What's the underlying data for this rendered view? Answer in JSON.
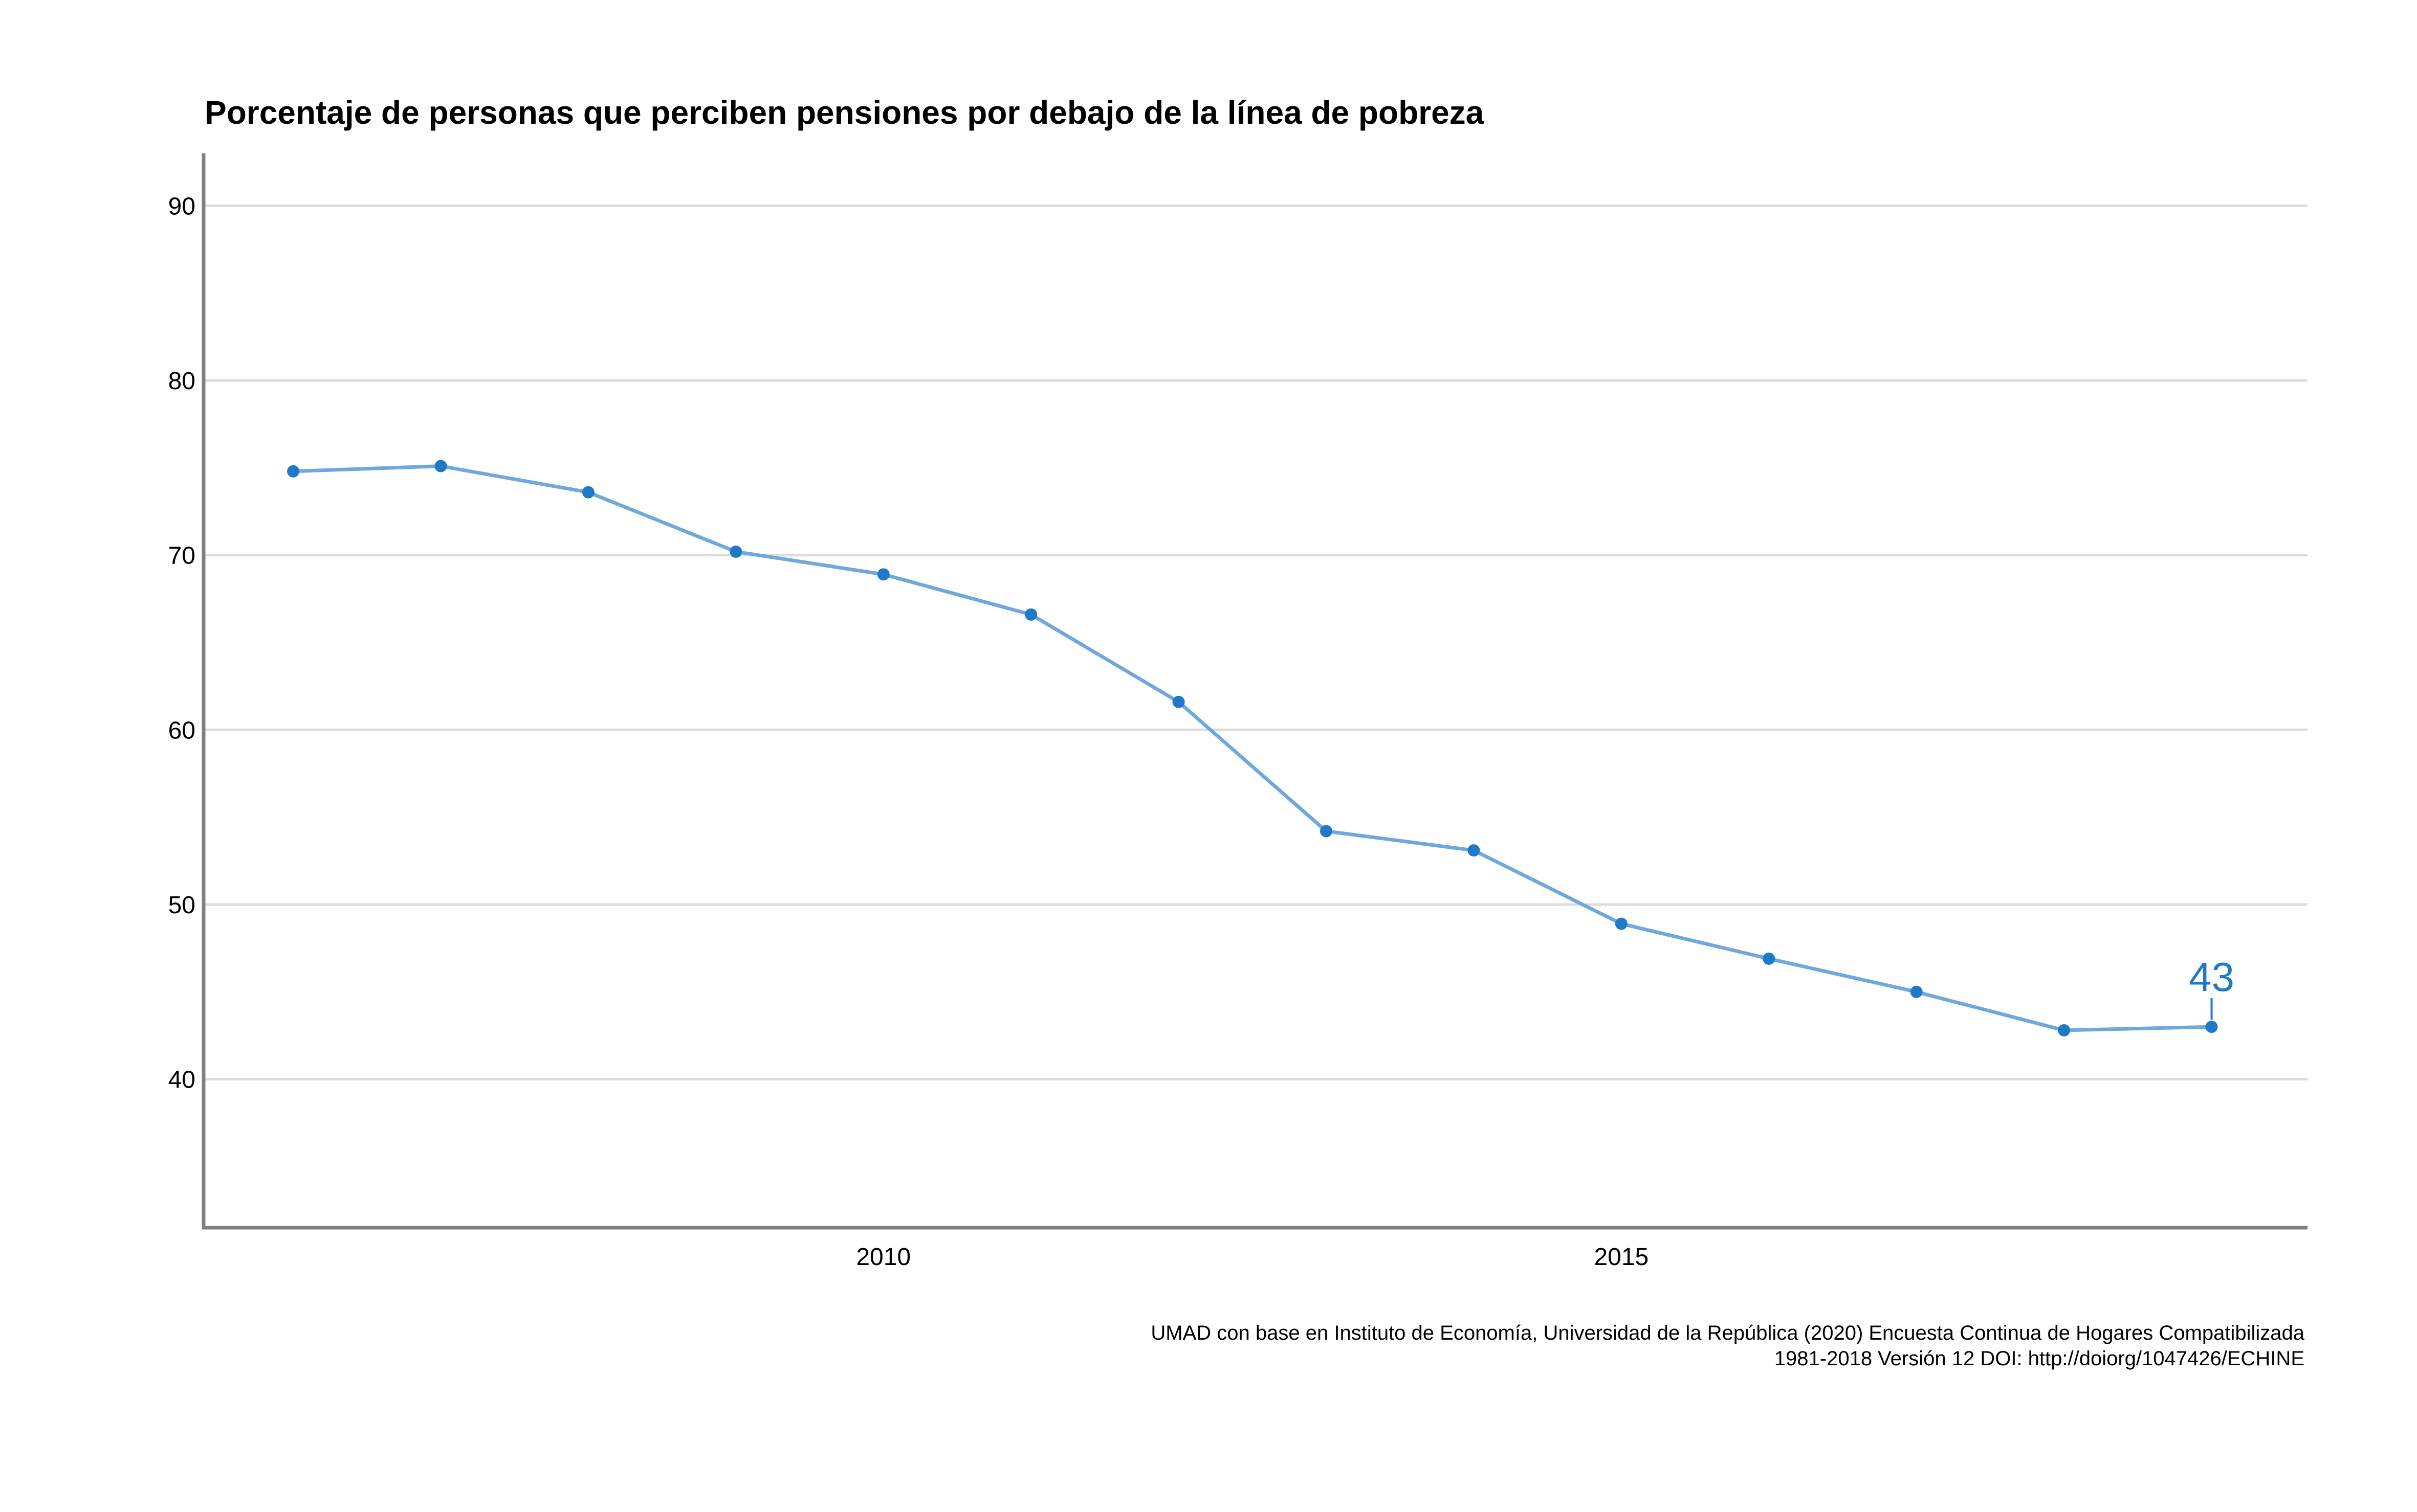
{
  "chart_data": {
    "type": "line",
    "title": "Porcentaje de personas que perciben pensiones por debajo de la línea de pobreza",
    "xlabel": "",
    "ylabel": "",
    "x": [
      2006,
      2007,
      2008,
      2009,
      2010,
      2011,
      2012,
      2013,
      2014,
      2015,
      2016,
      2017,
      2018,
      2019
    ],
    "series": [
      {
        "values": [
          74.8,
          75.1,
          73.6,
          70.2,
          68.9,
          66.6,
          61.6,
          54.2,
          53.1,
          48.9,
          46.9,
          45.0,
          42.8,
          43.0
        ]
      }
    ],
    "xlim": [
      2005.4,
      2019.65
    ],
    "ylim": [
      31.5,
      93
    ],
    "x_ticks": [
      {
        "value": 2010,
        "label": "2010"
      },
      {
        "value": 2015,
        "label": "2015"
      }
    ],
    "y_ticks": [
      {
        "value": 40,
        "label": "40"
      },
      {
        "value": 50,
        "label": "50"
      },
      {
        "value": 60,
        "label": "60"
      },
      {
        "value": 70,
        "label": "70"
      },
      {
        "value": 80,
        "label": "80"
      },
      {
        "value": 90,
        "label": "90"
      }
    ],
    "grid": "horizontal",
    "annotation": {
      "x": 2019,
      "y": 43.0,
      "label": "43"
    },
    "caption": [
      "UMAD con base en Instituto de Economía, Universidad de la República (2020) Encuesta Continua de Hogares Compatibilizada",
      "1981-2018 Versión 12 DOI: http://doiorg/1047426/ECHINE"
    ],
    "colors": {
      "line": "#6fa8dc",
      "point": "#1f78c8",
      "annotation": "#1f78c8",
      "grid": "#dcdcdc",
      "axis": "#808080"
    }
  }
}
